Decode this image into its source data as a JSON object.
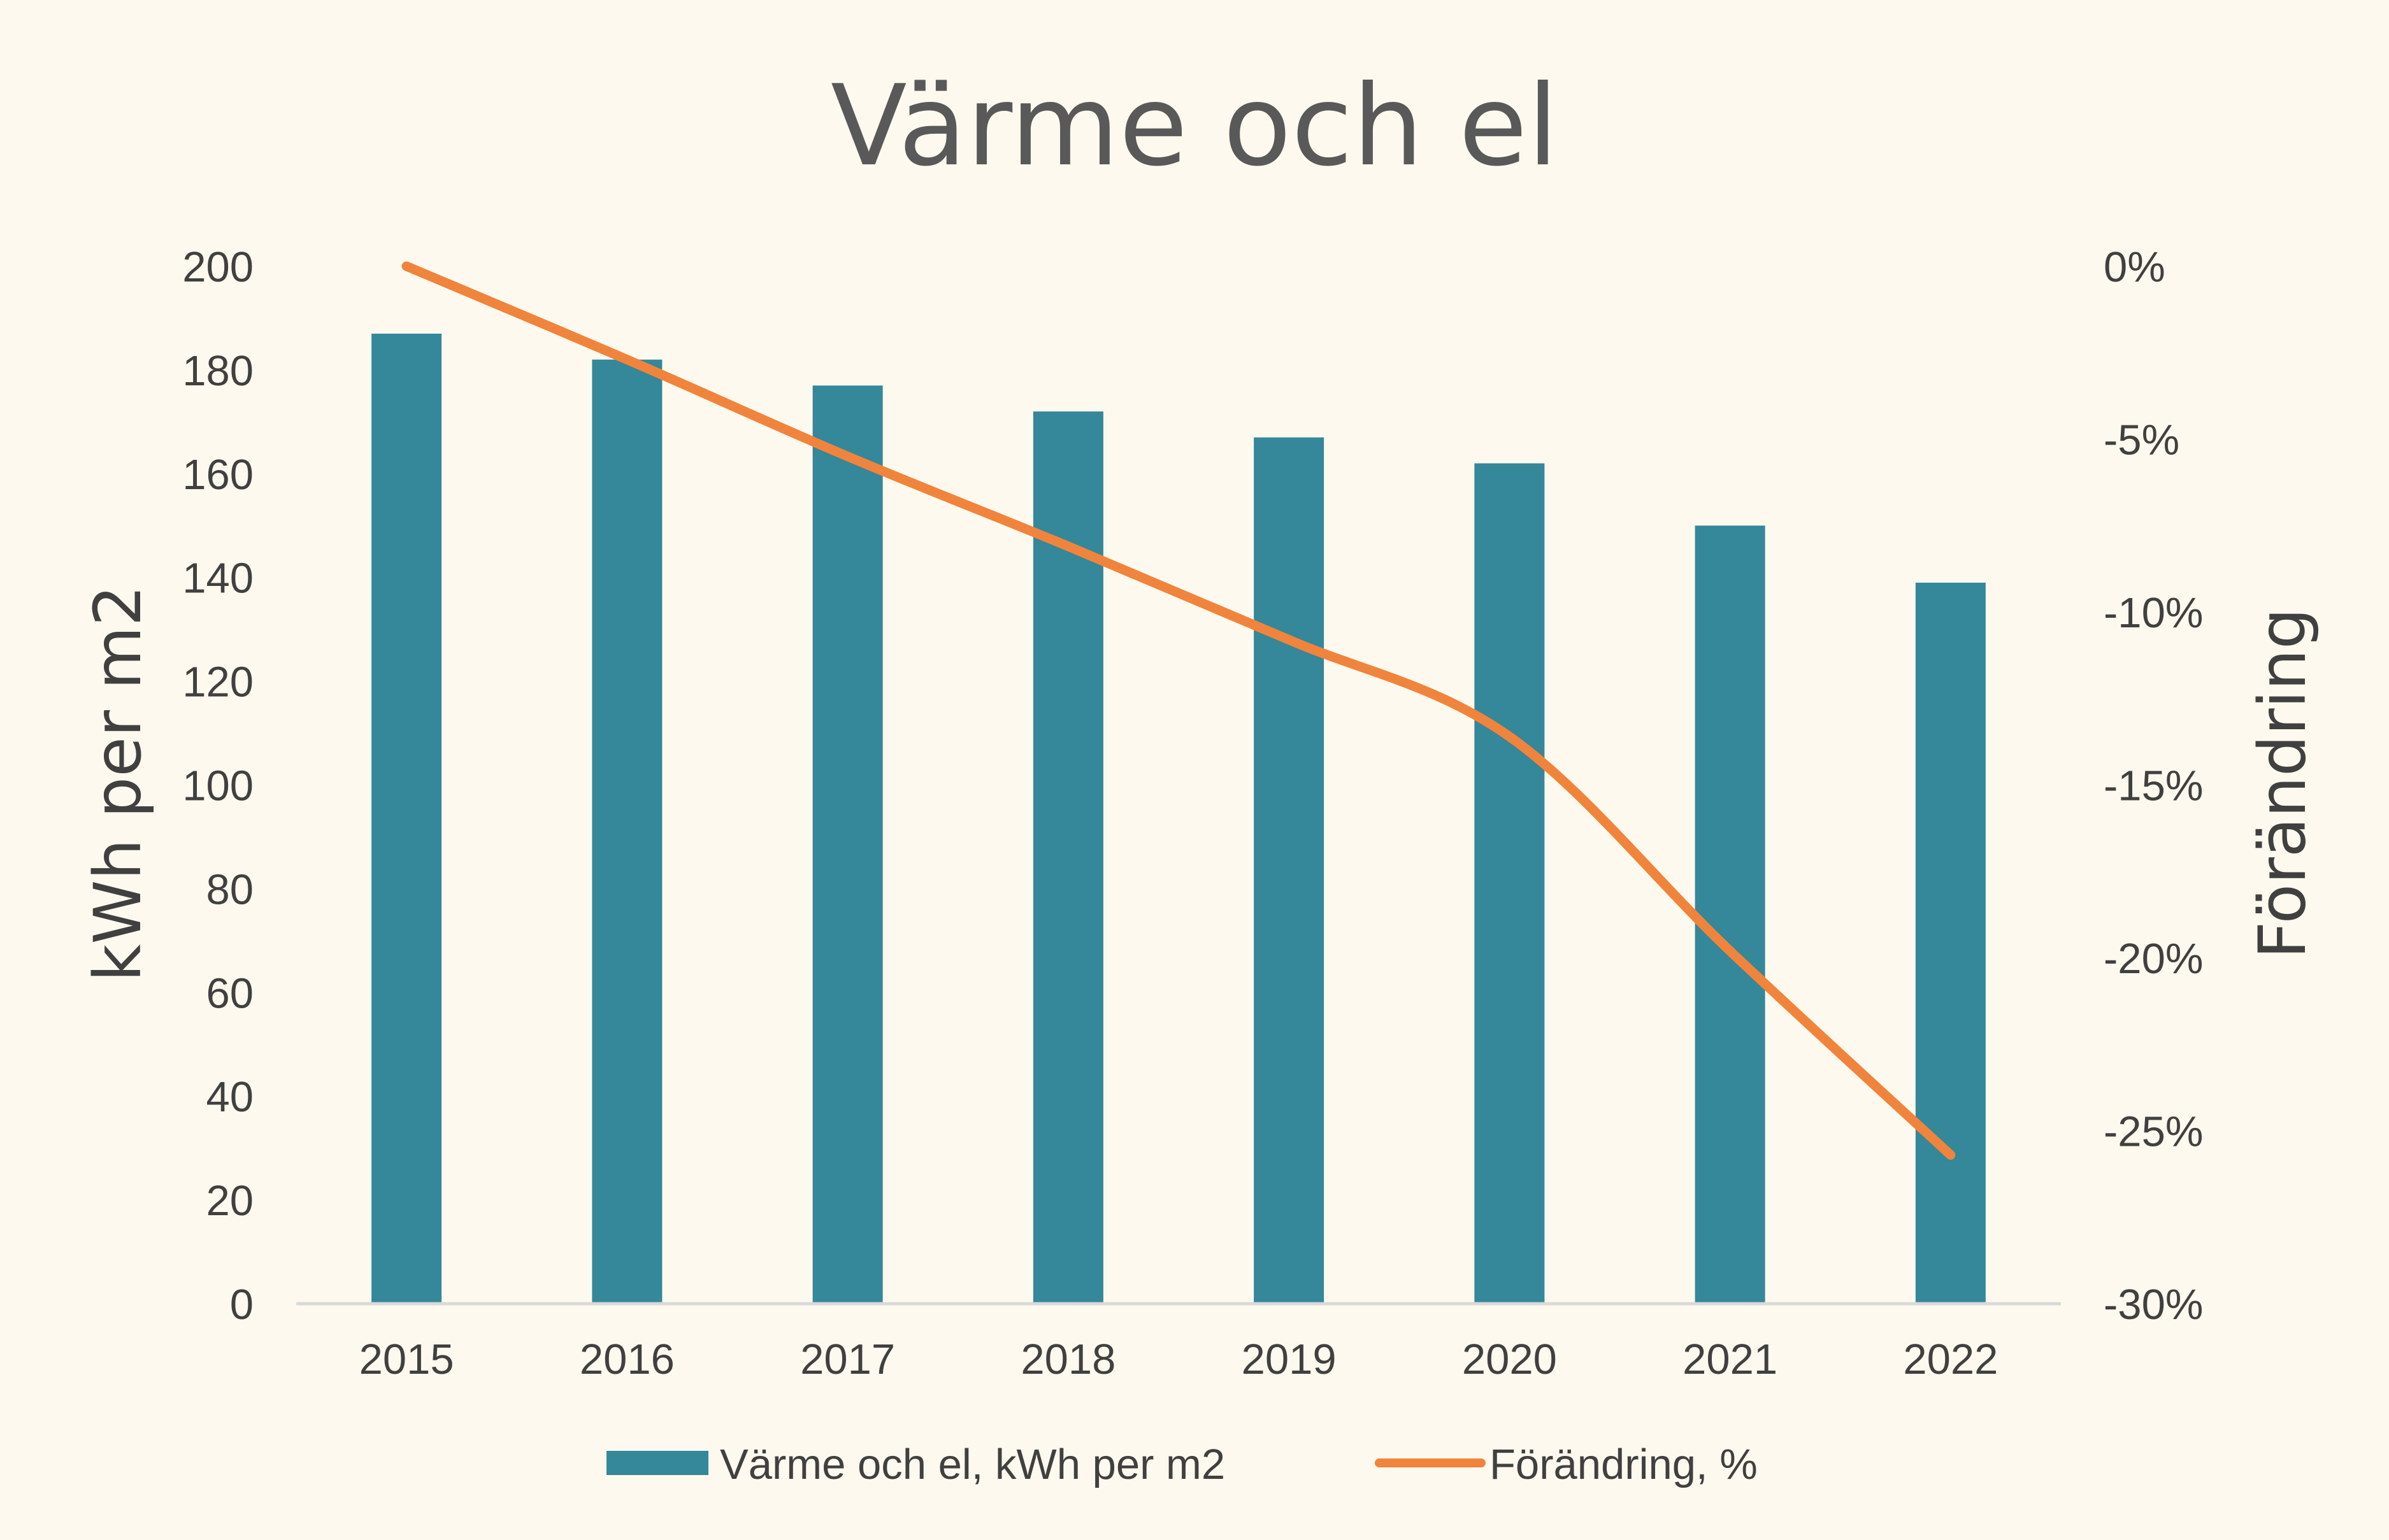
{
  "chart_data": {
    "type": "bar",
    "title": "Värme och el",
    "categories": [
      "2015",
      "2016",
      "2017",
      "2018",
      "2019",
      "2020",
      "2021",
      "2022"
    ],
    "series": [
      {
        "name": "Värme och el, kWh per m2",
        "type": "bar",
        "axis": "left",
        "color": "#35879a",
        "values": [
          187,
          182,
          177,
          172,
          167,
          162,
          150,
          139
        ]
      },
      {
        "name": "Förändring, %",
        "type": "line",
        "axis": "right",
        "color": "#f0843c",
        "values": [
          0,
          -2.7,
          -5.5,
          -8.1,
          -10.8,
          -13.6,
          -19.8,
          -25.7
        ]
      }
    ],
    "ylabel": "kWh per m2",
    "y2label": "Förändring",
    "ylim": [
      0,
      200
    ],
    "y_ticks": [
      "0",
      "20",
      "40",
      "60",
      "80",
      "100",
      "120",
      "140",
      "160",
      "180",
      "200"
    ],
    "y2lim": [
      -30,
      0
    ],
    "y2_ticks": [
      "-30%",
      "-25%",
      "-20%",
      "-15%",
      "-10%",
      "-5%",
      "0%"
    ],
    "grid": false,
    "legend_position": "bottom"
  }
}
